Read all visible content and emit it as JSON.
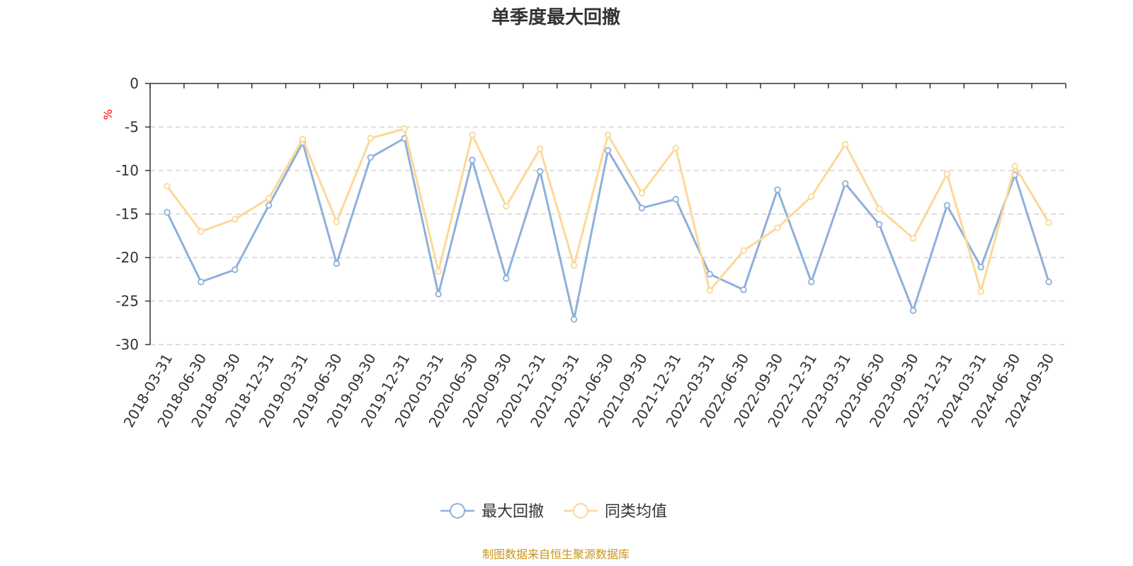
{
  "chart_data": {
    "type": "line",
    "title": "单季度最大回撤",
    "ylabel": "%",
    "ylim": [
      -30,
      0
    ],
    "yticks": [
      0,
      -5,
      -10,
      -15,
      -20,
      -25,
      -30
    ],
    "grid": true,
    "legend_position": "bottom-center",
    "categories": [
      "2018-03-31",
      "2018-06-30",
      "2018-09-30",
      "2018-12-31",
      "2019-03-31",
      "2019-06-30",
      "2019-09-30",
      "2019-12-31",
      "2020-03-31",
      "2020-06-30",
      "2020-09-30",
      "2020-12-31",
      "2021-03-31",
      "2021-06-30",
      "2021-09-30",
      "2021-12-31",
      "2022-03-31",
      "2022-06-30",
      "2022-09-30",
      "2022-12-31",
      "2023-03-31",
      "2023-06-30",
      "2023-09-30",
      "2023-12-31",
      "2024-03-31",
      "2024-06-30",
      "2024-09-30"
    ],
    "series": [
      {
        "name": "最大回撤",
        "color": "#8eb0da",
        "values": [
          -14.8,
          -22.8,
          -21.4,
          -14.0,
          -6.8,
          -20.7,
          -8.5,
          -6.3,
          -24.2,
          -8.8,
          -22.4,
          -10.1,
          -27.1,
          -7.7,
          -14.3,
          -13.3,
          -21.9,
          -23.7,
          -12.2,
          -22.8,
          -11.5,
          -16.2,
          -26.1,
          -14.0,
          -21.1,
          -10.5,
          -22.8
        ]
      },
      {
        "name": "同类均值",
        "color": "#fcd898",
        "values": [
          -11.8,
          -17.0,
          -15.6,
          -13.2,
          -6.4,
          -15.9,
          -6.3,
          -5.2,
          -21.6,
          -5.9,
          -14.1,
          -7.5,
          -20.9,
          -5.9,
          -12.6,
          -7.4,
          -23.8,
          -19.2,
          -16.6,
          -13.0,
          -7.0,
          -14.4,
          -17.8,
          -10.4,
          -23.9,
          -9.5,
          -16.0
        ]
      }
    ]
  },
  "colors": {
    "axis": "#333333",
    "grid": "#cccccc",
    "unit": "#ff0000",
    "source": "#c8961e"
  },
  "footer": {
    "source": "制图数据来自恒生聚源数据库"
  }
}
